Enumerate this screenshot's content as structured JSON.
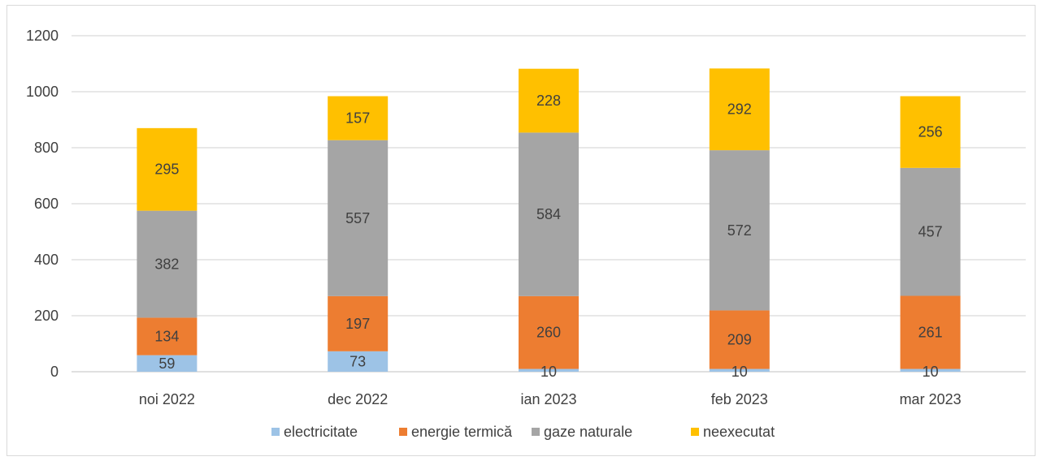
{
  "chart_data": {
    "type": "bar",
    "stacked": true,
    "categories": [
      "noi 2022",
      "dec 2022",
      "ian 2023",
      "feb 2023",
      "mar 2023"
    ],
    "series": [
      {
        "name": "electricitate",
        "color": "#9dc3e6",
        "values": [
          59,
          73,
          10,
          10,
          10
        ]
      },
      {
        "name": "energie termică",
        "color": "#ed7d31",
        "values": [
          134,
          197,
          260,
          209,
          261
        ]
      },
      {
        "name": "gaze naturale",
        "color": "#a5a5a5",
        "values": [
          382,
          557,
          584,
          572,
          457
        ]
      },
      {
        "name": "neexecutat",
        "color": "#ffc000",
        "values": [
          295,
          157,
          228,
          292,
          256
        ]
      }
    ],
    "yticks": [
      "0",
      "200",
      "400",
      "600",
      "800",
      "1000",
      "1200"
    ],
    "ylim": [
      0,
      1200
    ],
    "grid": true,
    "legend": "bottom"
  }
}
